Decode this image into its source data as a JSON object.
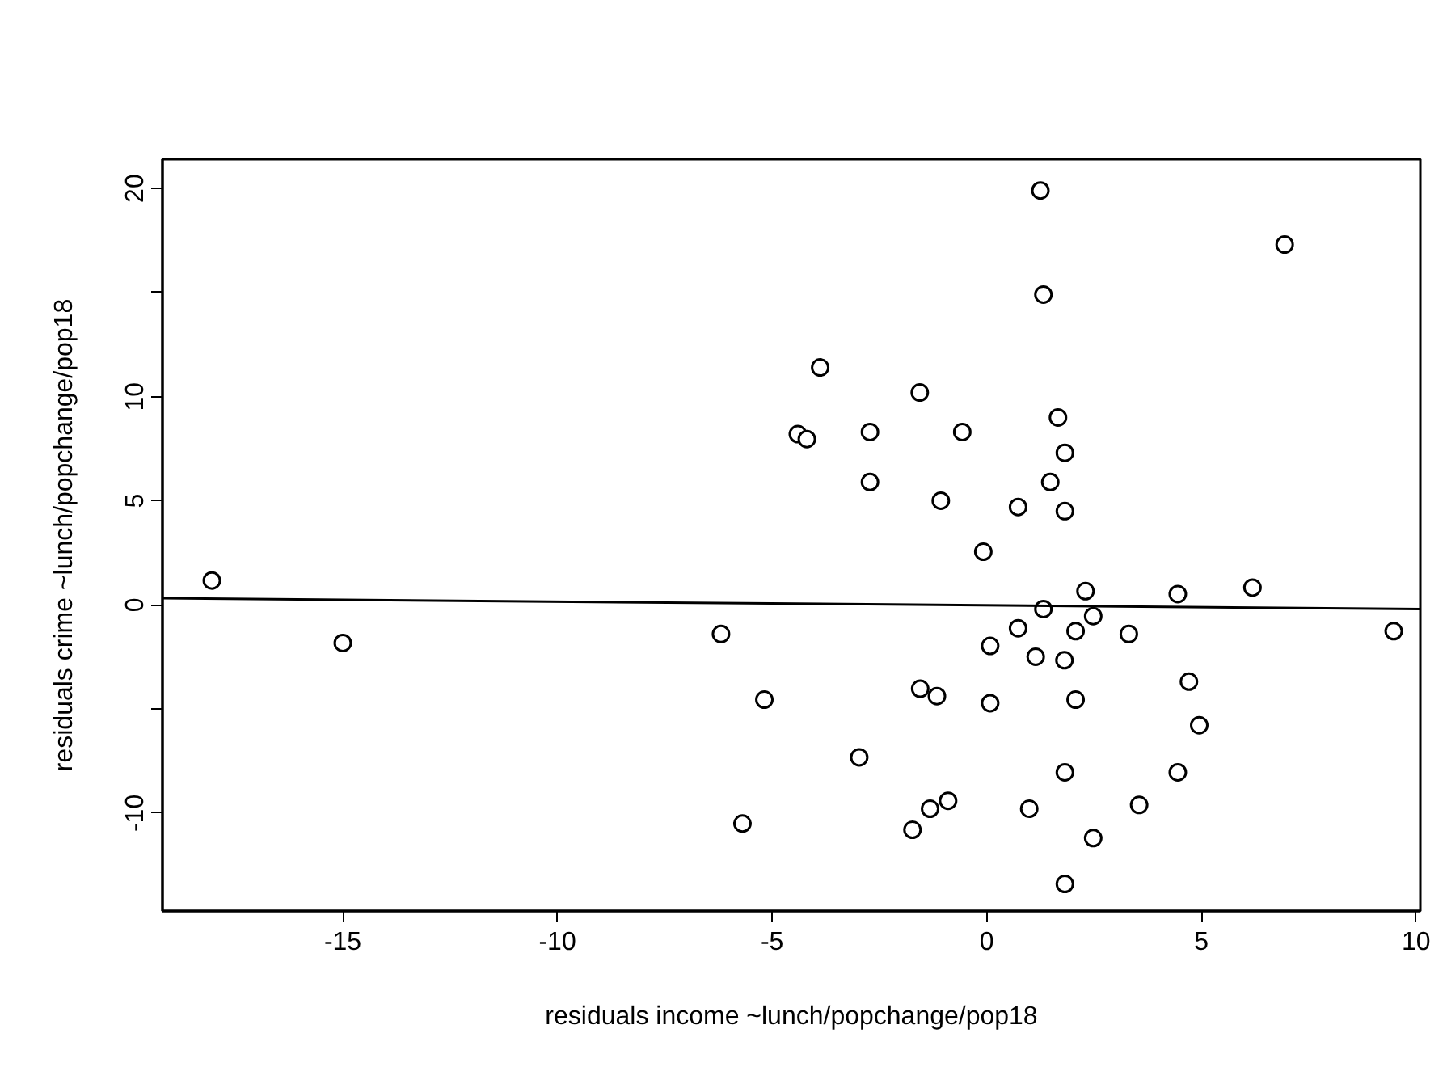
{
  "chart_data": {
    "type": "scatter",
    "xlabel": "residuals income ~lunch/popchange/pop18",
    "ylabel": "residuals crime ~lunch/popchange/pop18",
    "marker": "circle",
    "grid": false,
    "xlim": [
      -19.2,
      10.1
    ],
    "ylim": [
      -14.7,
      21.4
    ],
    "xticks": [
      -15,
      -10,
      -5,
      0,
      5,
      10
    ],
    "yticks": [
      {
        "value": -10,
        "label": "-10"
      },
      {
        "value": -5,
        "label": null
      },
      0,
      5,
      10,
      {
        "value": 15,
        "label": null
      },
      20
    ],
    "series": [
      {
        "color": "#000000",
        "x": [
          1.25,
          6.94,
          1.32,
          -3.88,
          -1.56,
          -4.4,
          -4.19,
          -2.72,
          -0.57,
          1.66,
          1.82,
          -2.72,
          1.48,
          -1.07,
          0.73,
          1.82,
          -0.08,
          2.3,
          4.45,
          6.19,
          1.32,
          2.48,
          0.73,
          2.07,
          3.31,
          9.48,
          -6.19,
          0.08,
          1.14,
          1.81,
          4.71,
          -1.55,
          -1.16,
          -5.18,
          0.08,
          2.07,
          4.95,
          -2.97,
          1.82,
          4.45,
          3.55,
          0.99,
          -0.9,
          -1.32,
          -1.73,
          -5.69,
          2.48,
          1.82,
          -18.05,
          -15.0
        ],
        "values": [
          19.9,
          17.3,
          14.9,
          11.4,
          10.2,
          8.2,
          7.96,
          8.3,
          8.3,
          9.0,
          7.3,
          5.9,
          5.9,
          5.0,
          4.7,
          4.5,
          2.55,
          0.66,
          0.52,
          0.83,
          -0.2,
          -0.54,
          -1.12,
          -1.26,
          -1.4,
          -1.26,
          -1.4,
          -1.97,
          -2.49,
          -2.66,
          -3.69,
          -4.03,
          -4.38,
          -4.55,
          -4.72,
          -4.55,
          -5.78,
          -7.32,
          -8.04,
          -8.04,
          -9.61,
          -9.79,
          -9.41,
          -9.79,
          -10.8,
          -10.5,
          -11.2,
          -13.4,
          1.17,
          -1.83
        ]
      },
      {
        "type": "line",
        "marker": "none",
        "color": "#000000",
        "x": [
          -19.2,
          10.1
        ],
        "values": [
          0.32,
          -0.2
        ]
      }
    ]
  }
}
